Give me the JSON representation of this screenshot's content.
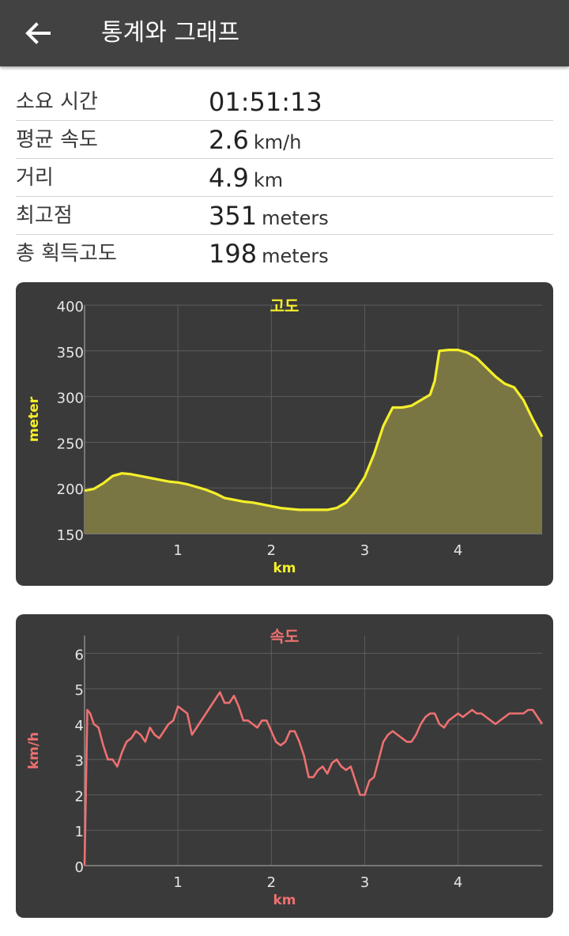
{
  "header": {
    "title": "통계와 그래프",
    "back_icon": "arrow-left-icon"
  },
  "stats": [
    {
      "label": "소요 시간",
      "value": "01:51:13",
      "unit": ""
    },
    {
      "label": "평균 속도",
      "value": "2.6",
      "unit": "km/h"
    },
    {
      "label": "거리",
      "value": "4.9",
      "unit": "km"
    },
    {
      "label": "최고점",
      "value": "351",
      "unit": "meters"
    },
    {
      "label": "총 획득고도",
      "value": "198",
      "unit": "meters"
    }
  ],
  "chart_data": [
    {
      "type": "area",
      "title": "고도",
      "xlabel": "km",
      "ylabel": "meter",
      "color": "#f5ef2a",
      "fill": "#7a7644",
      "xlim": [
        0,
        4.9
      ],
      "ylim": [
        150,
        400
      ],
      "xticks": [
        1,
        2,
        3,
        4
      ],
      "yticks": [
        150,
        200,
        250,
        300,
        350,
        400
      ],
      "grid": true,
      "x": [
        0,
        0.1,
        0.2,
        0.3,
        0.4,
        0.5,
        0.6,
        0.7,
        0.8,
        0.9,
        1.0,
        1.1,
        1.2,
        1.3,
        1.4,
        1.5,
        1.6,
        1.7,
        1.8,
        1.9,
        2.0,
        2.1,
        2.2,
        2.3,
        2.4,
        2.5,
        2.6,
        2.7,
        2.8,
        2.9,
        3.0,
        3.1,
        3.2,
        3.3,
        3.4,
        3.5,
        3.6,
        3.7,
        3.75,
        3.8,
        3.9,
        4.0,
        4.1,
        4.2,
        4.3,
        4.4,
        4.5,
        4.6,
        4.7,
        4.8,
        4.9
      ],
      "y": [
        197,
        199,
        205,
        213,
        216,
        215,
        213,
        211,
        209,
        207,
        206,
        204,
        201,
        198,
        194,
        189,
        187,
        185,
        184,
        182,
        180,
        178,
        177,
        176,
        176,
        176,
        176,
        178,
        184,
        196,
        212,
        237,
        268,
        288,
        288,
        290,
        296,
        302,
        317,
        350,
        351,
        351,
        348,
        342,
        332,
        322,
        314,
        310,
        296,
        275,
        256
      ]
    },
    {
      "type": "line",
      "title": "속도",
      "xlabel": "km",
      "ylabel": "km/h",
      "color": "#ee7070",
      "xlim": [
        0,
        4.9
      ],
      "ylim": [
        0,
        6.5
      ],
      "xticks": [
        1,
        2,
        3,
        4
      ],
      "yticks": [
        0,
        1,
        2,
        3,
        4,
        5,
        6
      ],
      "grid": true,
      "x": [
        0,
        0.03,
        0.06,
        0.1,
        0.15,
        0.2,
        0.25,
        0.3,
        0.35,
        0.4,
        0.45,
        0.5,
        0.55,
        0.6,
        0.65,
        0.7,
        0.75,
        0.8,
        0.85,
        0.9,
        0.95,
        1.0,
        1.05,
        1.1,
        1.15,
        1.2,
        1.25,
        1.3,
        1.35,
        1.4,
        1.45,
        1.5,
        1.55,
        1.6,
        1.65,
        1.7,
        1.75,
        1.8,
        1.85,
        1.9,
        1.95,
        2.0,
        2.05,
        2.1,
        2.15,
        2.2,
        2.25,
        2.3,
        2.35,
        2.4,
        2.45,
        2.5,
        2.55,
        2.6,
        2.65,
        2.7,
        2.75,
        2.8,
        2.85,
        2.9,
        2.95,
        3.0,
        3.05,
        3.1,
        3.15,
        3.2,
        3.25,
        3.3,
        3.35,
        3.4,
        3.45,
        3.5,
        3.55,
        3.6,
        3.65,
        3.7,
        3.75,
        3.8,
        3.85,
        3.9,
        3.95,
        4.0,
        4.05,
        4.1,
        4.15,
        4.2,
        4.25,
        4.3,
        4.35,
        4.4,
        4.45,
        4.5,
        4.55,
        4.6,
        4.65,
        4.7,
        4.75,
        4.8,
        4.9
      ],
      "y": [
        0,
        4.4,
        4.3,
        4.0,
        3.9,
        3.4,
        3.0,
        3.0,
        2.8,
        3.2,
        3.5,
        3.6,
        3.8,
        3.7,
        3.5,
        3.9,
        3.7,
        3.6,
        3.8,
        4.0,
        4.1,
        4.5,
        4.4,
        4.3,
        3.7,
        3.9,
        4.1,
        4.3,
        4.5,
        4.7,
        4.9,
        4.6,
        4.6,
        4.8,
        4.5,
        4.1,
        4.1,
        4.0,
        3.9,
        4.1,
        4.1,
        3.8,
        3.5,
        3.4,
        3.5,
        3.8,
        3.8,
        3.5,
        3.1,
        2.5,
        2.5,
        2.7,
        2.8,
        2.6,
        2.9,
        3.0,
        2.8,
        2.7,
        2.8,
        2.4,
        2.0,
        2.0,
        2.4,
        2.5,
        3.0,
        3.5,
        3.7,
        3.8,
        3.7,
        3.6,
        3.5,
        3.5,
        3.7,
        4.0,
        4.2,
        4.3,
        4.3,
        4.0,
        3.9,
        4.1,
        4.2,
        4.3,
        4.2,
        4.3,
        4.4,
        4.3,
        4.3,
        4.2,
        4.1,
        4.0,
        4.1,
        4.2,
        4.3,
        4.3,
        4.3,
        4.3,
        4.4,
        4.4,
        4.0
      ]
    }
  ]
}
